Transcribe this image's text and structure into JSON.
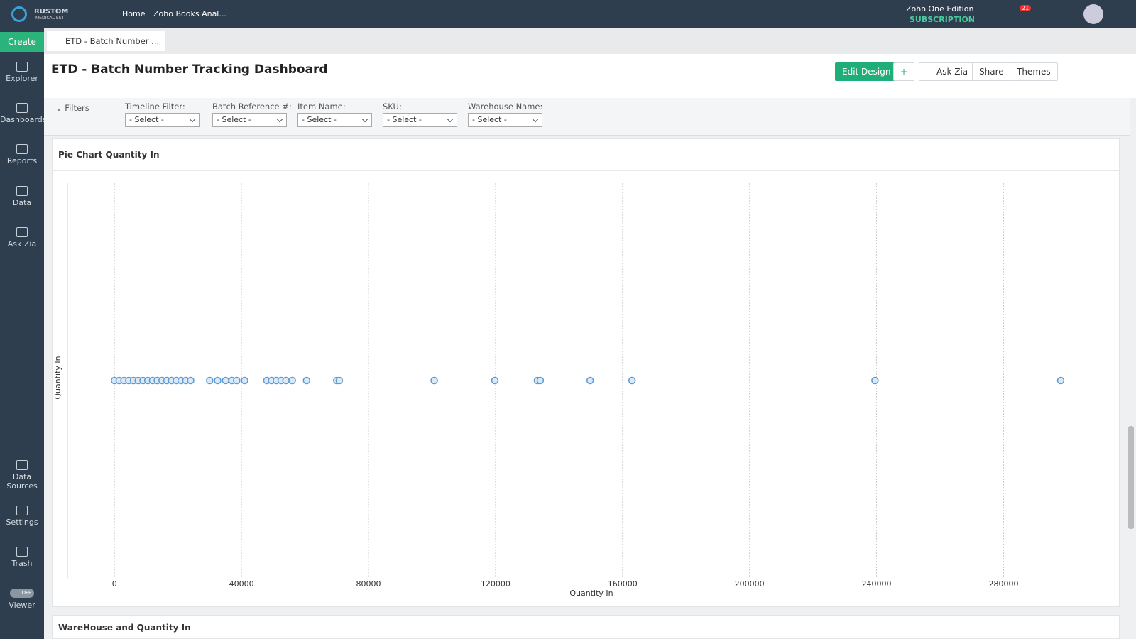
{
  "topbar": {
    "logo": "RUSTOM",
    "logo_sub": "MEDICAL EST",
    "nav": [
      "Home",
      "Zoho Books Anal..."
    ],
    "edition": "Zoho One Edition",
    "subscription": "SUBSCRIPTION",
    "notifications": "21"
  },
  "sidebar": {
    "create": "Create",
    "items": [
      "Explorer",
      "Dashboards",
      "Reports",
      "Data",
      "Ask Zia"
    ],
    "bottom_items": [
      "Data Sources",
      "Settings",
      "Trash"
    ],
    "viewer_toggle": "OFF",
    "viewer": "Viewer"
  },
  "tab": {
    "title": "ETD - Batch Number ..."
  },
  "header": {
    "title": "ETD - Batch Number Tracking Dashboard",
    "buttons": [
      "Edit Design",
      "Ask Zia",
      "Share",
      "Themes"
    ]
  },
  "filters": {
    "label": "Filters",
    "items": [
      {
        "label": "Timeline Filter:",
        "value": "- Select -"
      },
      {
        "label": "Batch Reference #:",
        "value": "- Select -"
      },
      {
        "label": "Item Name:",
        "value": "- Select -"
      },
      {
        "label": "SKU:",
        "value": "- Select -"
      },
      {
        "label": "Warehouse Name:",
        "value": "- Select -"
      }
    ]
  },
  "chart_data": {
    "type": "scatter",
    "title": "Pie Chart Quantity In",
    "x_label": "Quantity In",
    "y_label": "Quantity In",
    "x": [
      0,
      1500,
      3000,
      4500,
      6000,
      7500,
      9000,
      10500,
      12000,
      13500,
      15000,
      16500,
      18000,
      19500,
      21000,
      22500,
      24000,
      30000,
      32500,
      35000,
      37000,
      38500,
      41000,
      48000,
      49500,
      51000,
      52500,
      54000,
      56000,
      60500,
      70000,
      70800,
      100700,
      119800,
      133200,
      134100,
      149800,
      163000,
      239500,
      298000
    ],
    "color": "#5b9bd5",
    "xlim": [
      -14800,
      315000
    ],
    "xticks": [
      0,
      40000,
      80000,
      120000,
      160000,
      200000,
      240000,
      280000
    ],
    "grid": true
  },
  "second_panel": {
    "title": "WareHouse and Quantity In"
  }
}
